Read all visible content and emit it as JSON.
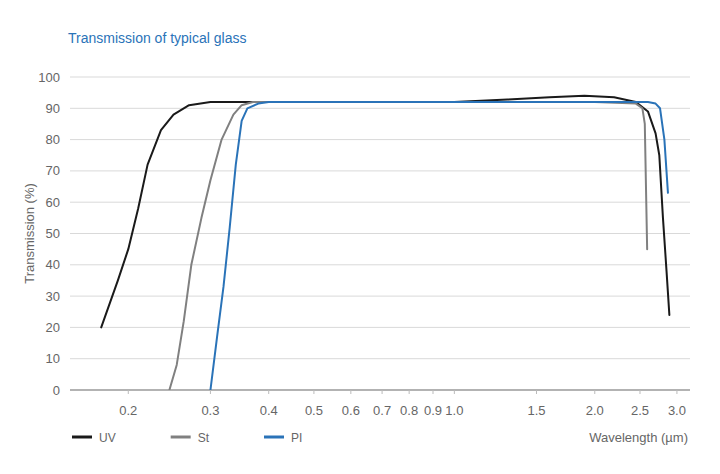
{
  "chart_data": {
    "type": "line",
    "title": "Transmission of typical glass",
    "x_label": "Wavelength (µm)",
    "y_label": "Transmission (%)",
    "log": "x",
    "grid": true,
    "legend": "bottom",
    "xlim": [
      0.15,
      3.2
    ],
    "xticks": [
      0.2,
      0.3,
      0.4,
      0.5,
      0.6,
      0.7,
      0.8,
      0.9,
      {
        "value": 1,
        "label": "1.0"
      },
      1.5,
      {
        "value": 2,
        "label": "2.0"
      },
      2.5,
      {
        "value": 3,
        "label": "3.0"
      }
    ],
    "ylim": [
      0,
      100
    ],
    "yticks": [
      0,
      10,
      20,
      30,
      40,
      50,
      60,
      70,
      80,
      90,
      100
    ],
    "series": [
      {
        "name": "UV",
        "color": "#1a1a1a",
        "x": [
          0.175,
          0.19,
          0.2,
          0.21,
          0.22,
          0.235,
          0.25,
          0.27,
          0.3,
          0.4,
          0.6,
          1.0,
          1.3,
          1.6,
          1.9,
          2.2,
          2.45,
          2.6,
          2.7,
          2.75,
          2.8,
          2.85,
          2.89
        ],
        "values": [
          20,
          35,
          45,
          58,
          72,
          83,
          88,
          91,
          92,
          92,
          92,
          92,
          92.8,
          93.5,
          94,
          93.5,
          92,
          89,
          82,
          75,
          55,
          38,
          24
        ]
      },
      {
        "name": "St",
        "color": "#808080",
        "x": [
          0.245,
          0.254,
          0.263,
          0.273,
          0.287,
          0.3,
          0.317,
          0.336,
          0.35,
          0.37,
          0.5,
          1.0,
          2.0,
          2.45,
          2.53,
          2.56,
          2.59
        ],
        "values": [
          0,
          8,
          22,
          40,
          55,
          67,
          80,
          88,
          91,
          92,
          92,
          92,
          92,
          91.5,
          90,
          85,
          45
        ]
      },
      {
        "name": "PI",
        "color": "#2a73b8",
        "x": [
          0.3,
          0.31,
          0.32,
          0.33,
          0.34,
          0.35,
          0.36,
          0.38,
          0.4,
          1.0,
          2.0,
          2.6,
          2.7,
          2.76,
          2.82,
          2.87
        ],
        "values": [
          0,
          17,
          33,
          52,
          72,
          86,
          90,
          91.5,
          92,
          92,
          92,
          92,
          91.5,
          90,
          80,
          63
        ]
      }
    ]
  }
}
